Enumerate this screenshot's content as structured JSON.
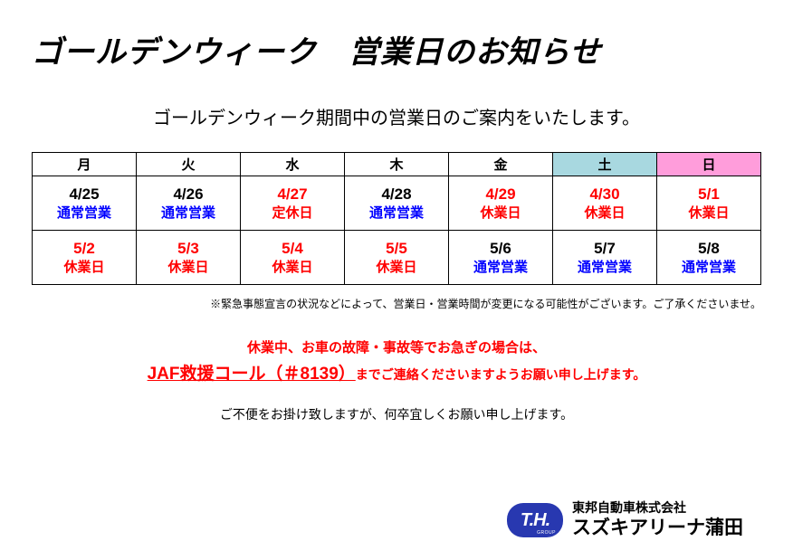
{
  "title": "ゴールデンウィーク　営業日のお知らせ",
  "subtitle": "ゴールデンウィーク期間中の営業日のご案内をいたします。",
  "colors": {
    "black": "#000000",
    "red": "#ff0000",
    "blue": "#0000ff",
    "sat_bg": "#a8d8e0",
    "sun_bg": "#ff9ddb",
    "logo_bg": "#2838b0"
  },
  "headers": [
    {
      "label": "月",
      "bg": "#ffffff"
    },
    {
      "label": "火",
      "bg": "#ffffff"
    },
    {
      "label": "水",
      "bg": "#ffffff"
    },
    {
      "label": "木",
      "bg": "#ffffff"
    },
    {
      "label": "金",
      "bg": "#ffffff"
    },
    {
      "label": "土",
      "bg": "#a8d8e0"
    },
    {
      "label": "日",
      "bg": "#ff9ddb"
    }
  ],
  "rows": [
    [
      {
        "date": "4/25",
        "date_color": "#000000",
        "status": "通常営業",
        "status_color": "#0000ff"
      },
      {
        "date": "4/26",
        "date_color": "#000000",
        "status": "通常営業",
        "status_color": "#0000ff"
      },
      {
        "date": "4/27",
        "date_color": "#ff0000",
        "status": "定休日",
        "status_color": "#ff0000"
      },
      {
        "date": "4/28",
        "date_color": "#000000",
        "status": "通常営業",
        "status_color": "#0000ff"
      },
      {
        "date": "4/29",
        "date_color": "#ff0000",
        "status": "休業日",
        "status_color": "#ff0000"
      },
      {
        "date": "4/30",
        "date_color": "#ff0000",
        "status": "休業日",
        "status_color": "#ff0000"
      },
      {
        "date": "5/1",
        "date_color": "#ff0000",
        "status": "休業日",
        "status_color": "#ff0000"
      }
    ],
    [
      {
        "date": "5/2",
        "date_color": "#ff0000",
        "status": "休業日",
        "status_color": "#ff0000"
      },
      {
        "date": "5/3",
        "date_color": "#ff0000",
        "status": "休業日",
        "status_color": "#ff0000"
      },
      {
        "date": "5/4",
        "date_color": "#ff0000",
        "status": "休業日",
        "status_color": "#ff0000"
      },
      {
        "date": "5/5",
        "date_color": "#ff0000",
        "status": "休業日",
        "status_color": "#ff0000"
      },
      {
        "date": "5/6",
        "date_color": "#000000",
        "status": "通常営業",
        "status_color": "#0000ff"
      },
      {
        "date": "5/7",
        "date_color": "#000000",
        "status": "通常営業",
        "status_color": "#0000ff"
      },
      {
        "date": "5/8",
        "date_color": "#000000",
        "status": "通常営業",
        "status_color": "#0000ff"
      }
    ]
  ],
  "note": "※緊急事態宣言の状況などによって、営業日・営業時間が変更になる可能性がございます。ご了承くださいませ。",
  "emergency": {
    "line1": "休業中、お車の故障・事故等でお急ぎの場合は、",
    "jaf": "JAF救援コール（＃8139）",
    "line2_tail": "までご連絡くださいますようお願い申し上げます。",
    "color": "#ff0000"
  },
  "closing": "ご不便をお掛け致しますが、何卒宜しくお願い申し上げます。",
  "company": {
    "logo_text": "T.H.",
    "logo_sub": "GROUP",
    "line1": "東邦自動車株式会社",
    "line2": "スズキアリーナ蒲田"
  }
}
